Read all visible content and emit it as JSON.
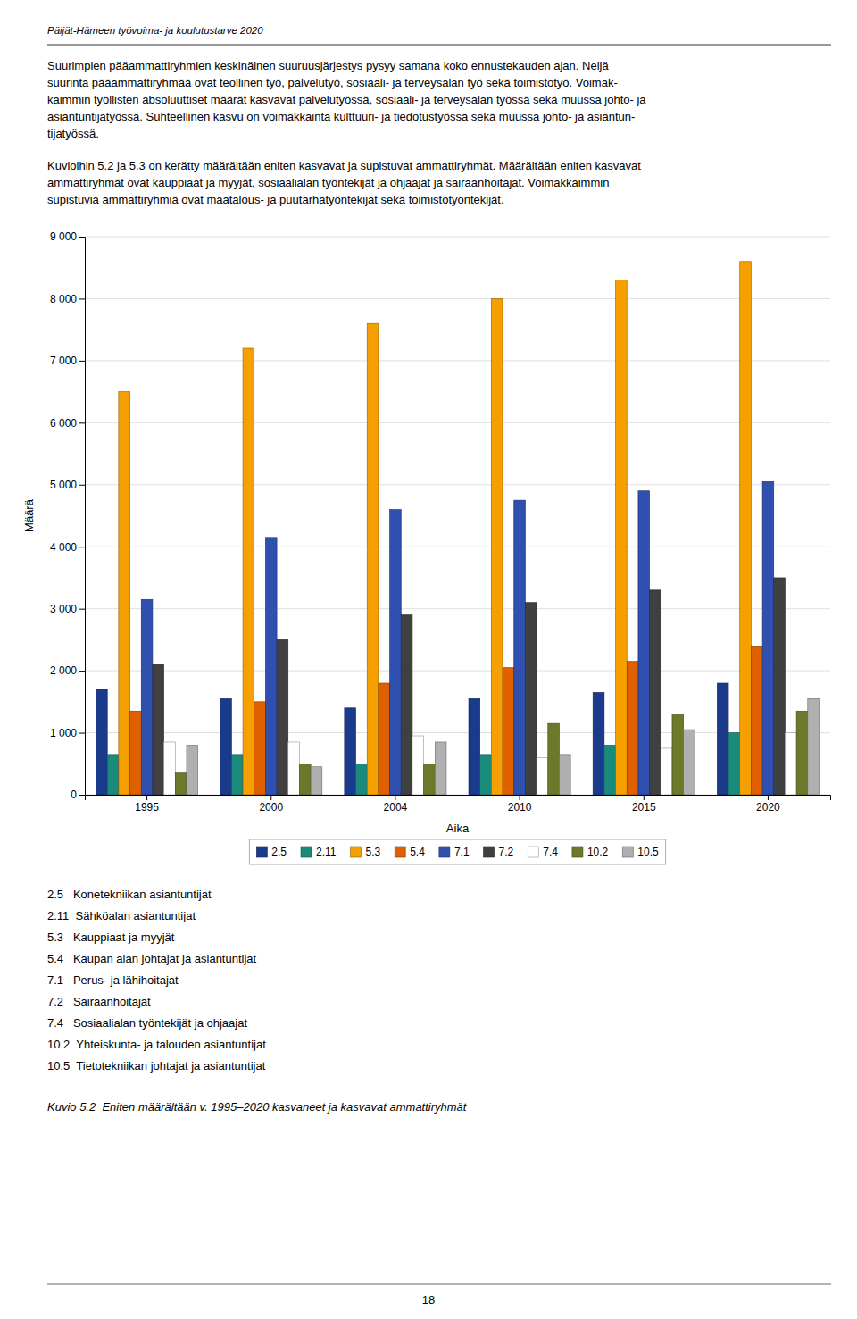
{
  "header": "Päijät-Hämeen työvoima- ja koulutustarve 2020",
  "para1_lines": [
    "Suurimpien pääammattiryhmien keskinäinen suuruusjärjestys pysyy samana koko ennustekauden ajan. Neljä",
    "suurinta pääammattiryhmää ovat teollinen työ, palvelutyö, sosiaali- ja terveysalan työ sekä toimistotyö. Voimak-",
    "kaimmin työllisten absoluuttiset määrät kasvavat palvelutyössä, sosiaali- ja terveysalan työssä sekä muussa johto- ja",
    "asiantuntijatyössä. Suhteellinen kasvu on voimakkainta kulttuuri- ja tiedotustyössä sekä muussa johto- ja asiantun-",
    "tijatyössä."
  ],
  "para2_lines": [
    "Kuvioihin 5.2 ja 5.3 on kerätty määrältään eniten kasvavat ja supistuvat ammattiryhmät. Määrältään eniten kasvavat",
    "ammattiryhmät ovat kauppiaat ja myyjät, sosiaalialan työntekijät ja ohjaajat ja sairaanhoitajat. Voimakkaimmin",
    "supistuvia ammattiryhmiä ovat maatalous- ja puutarhatyöntekijät sekä toimistotyöntekijät."
  ],
  "label_lines": [
    "2.5   Konetekniikan asiantuntijat",
    "2.11  Sähköalan asiantuntijat",
    "5.3   Kauppiaat ja myyjät",
    "5.4   Kaupan alan johtajat ja asiantuntijat",
    "7.1   Perus- ja lähihoitajat",
    "7.2   Sairaanhoitajat",
    "7.4   Sosiaalialan työntekijät ja ohjaajat",
    "10.2  Yhteiskunta- ja talouden asiantuntijat",
    "10.5  Tietotekniikan johtajat ja asiantuntijat"
  ],
  "caption": "Kuvio 5.2  Eniten määrältään v. 1995–2020 kasvaneet ja kasvavat ammattiryhmät",
  "page_num": "18",
  "chart_data": {
    "type": "bar",
    "x_label": "Aika",
    "y_label": "Määrä",
    "categories": [
      "1995",
      "2000",
      "2004",
      "2010",
      "2015",
      "2020"
    ],
    "series": [
      {
        "name": "2.5",
        "color": "#1a3a8c",
        "values": [
          1700,
          1550,
          1400,
          1550,
          1650,
          1800
        ]
      },
      {
        "name": "2.11",
        "color": "#1a8a7c",
        "values": [
          650,
          650,
          500,
          650,
          800,
          1000
        ]
      },
      {
        "name": "5.3",
        "color": "#f5a000",
        "values": [
          6500,
          7200,
          7600,
          8000,
          8300,
          8600
        ]
      },
      {
        "name": "5.4",
        "color": "#e06000",
        "values": [
          1350,
          1500,
          1800,
          2050,
          2150,
          2400
        ]
      },
      {
        "name": "7.1",
        "color": "#3050b0",
        "values": [
          3150,
          4150,
          4600,
          4750,
          4900,
          5050
        ]
      },
      {
        "name": "7.2",
        "color": "#404040",
        "values": [
          2100,
          2500,
          2900,
          3100,
          3300,
          3500
        ]
      },
      {
        "name": "7.4",
        "color": "#ffffff",
        "values": [
          850,
          850,
          950,
          600,
          750,
          1000
        ]
      },
      {
        "name": "10.2",
        "color": "#6b7a2a",
        "values": [
          350,
          500,
          500,
          1150,
          1300,
          1350
        ]
      },
      {
        "name": "10.5",
        "color": "#b0b0b0",
        "values": [
          800,
          450,
          850,
          650,
          1050,
          1550
        ]
      }
    ],
    "ylim": [
      0,
      9000
    ],
    "yticks": [
      0,
      {
        "value": 1000,
        "label": "1 000"
      },
      {
        "value": 2000,
        "label": "2 000"
      },
      {
        "value": 3000,
        "label": "3 000"
      },
      {
        "value": 4000,
        "label": "4 000"
      },
      {
        "value": 5000,
        "label": "5 000"
      },
      {
        "value": 6000,
        "label": "6 000"
      },
      {
        "value": 7000,
        "label": "7 000"
      },
      {
        "value": 8000,
        "label": "8 000"
      },
      {
        "value": 9000,
        "label": "9 000"
      }
    ],
    "grid": true,
    "legend": "bottom"
  }
}
